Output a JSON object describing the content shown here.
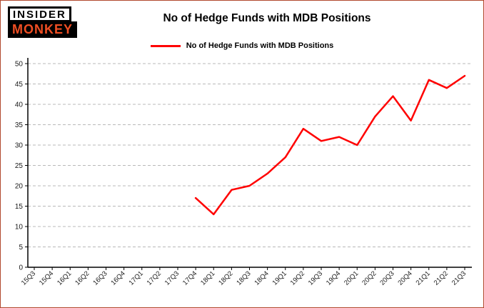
{
  "logo": {
    "line1": "INSIDER",
    "line2": "MONKEY"
  },
  "colors": {
    "line": "#ff0000",
    "frame_border": "#b2492e",
    "grid": "#b8b8b8",
    "axis": "#000000",
    "logo_accent": "#f04e23"
  },
  "chart_data": {
    "type": "line",
    "title": "No of Hedge Funds with MDB Positions",
    "legend": "No of Hedge Funds with MDB Positions",
    "categories": [
      "15Q3",
      "15Q4",
      "16Q1",
      "16Q2",
      "16Q3",
      "16Q4",
      "17Q1",
      "17Q2",
      "17Q3",
      "17Q4",
      "18Q1",
      "18Q2",
      "18Q3",
      "18Q4",
      "19Q1",
      "19Q2",
      "19Q3",
      "19Q4",
      "20Q1",
      "20Q2",
      "20Q3",
      "20Q4",
      "21Q1",
      "21Q2",
      "21Q3"
    ],
    "series": [
      {
        "name": "No of Hedge Funds with MDB Positions",
        "color": "#ff0000",
        "start_index": 9,
        "values": [
          17,
          13,
          19,
          20,
          23,
          27,
          34,
          31,
          32,
          30,
          37,
          42,
          36,
          46,
          44,
          47
        ]
      }
    ],
    "ylim": [
      0,
      50
    ],
    "ytick_step": 5,
    "grid": "dashed-horizontal",
    "legend_position": "top-center"
  }
}
